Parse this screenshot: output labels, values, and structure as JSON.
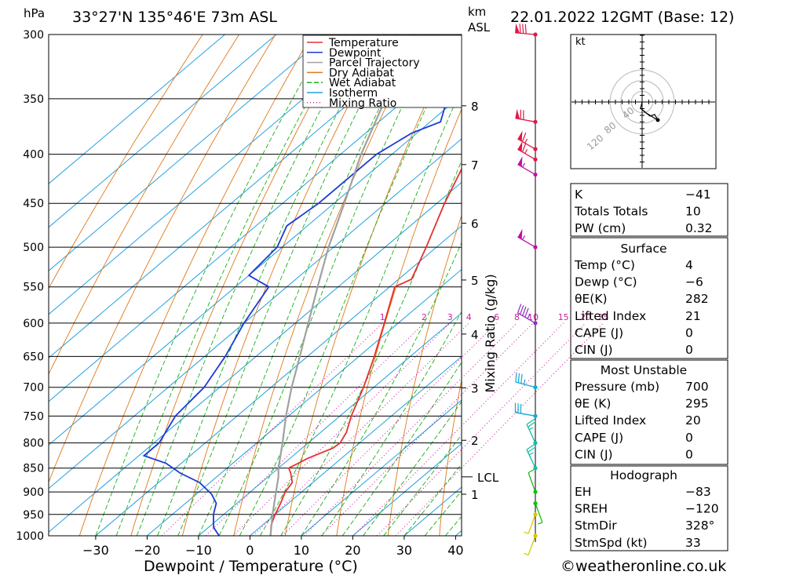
{
  "header": {
    "unit_left": "hPa",
    "location": "33°27'N  135°46'E  73m  ASL",
    "unit_km": "km",
    "unit_asl": "ASL",
    "datetime": "22.01.2022  12GMT  (Base: 12)"
  },
  "axes": {
    "xlabel": "Dewpoint / Temperature (°C)",
    "y2label": "Mixing Ratio (g/kg)",
    "lcl_label": "LCL"
  },
  "colors": {
    "temperature": "#e83030",
    "dewpoint": "#1a3ad6",
    "parcel": "#a0a0a0",
    "dry_adiabat": "#e07818",
    "wet_adiabat": "#18b018",
    "isotherm": "#20a0e0",
    "mixing_ratio": "#d020a0"
  },
  "legend": [
    {
      "label": "Temperature",
      "key": "temperature",
      "dash": ""
    },
    {
      "label": "Dewpoint",
      "key": "dewpoint",
      "dash": ""
    },
    {
      "label": "Parcel Trajectory",
      "key": "parcel",
      "dash": ""
    },
    {
      "label": "Dry Adiabat",
      "key": "dry_adiabat",
      "dash": ""
    },
    {
      "label": "Wet Adiabat",
      "key": "wet_adiabat",
      "dash": "6,3"
    },
    {
      "label": "Isotherm",
      "key": "isotherm",
      "dash": ""
    },
    {
      "label": "Mixing Ratio",
      "key": "mixing_ratio",
      "dash": "1,3"
    }
  ],
  "chart_data": {
    "type": "line",
    "title": "33°27'N 135°46'E 73m ASL — 22.01.2022 12GMT (Base: 12)",
    "xlabel": "Dewpoint / Temperature (°C)",
    "ylabel": "hPa",
    "y2label": "Mixing Ratio (g/kg)",
    "xlim": [
      -40,
      40
    ],
    "ylim": [
      1000,
      300
    ],
    "yscale": "log",
    "skew": true,
    "pressure_ticks": [
      300,
      350,
      400,
      450,
      500,
      550,
      600,
      650,
      700,
      750,
      800,
      850,
      900,
      950,
      1000
    ],
    "temperature_ticks": [
      -30,
      -20,
      -10,
      0,
      10,
      20,
      30,
      40
    ],
    "km_ticks": [
      {
        "label": "8",
        "p": 356
      },
      {
        "label": "7",
        "p": 410
      },
      {
        "label": "6",
        "p": 472
      },
      {
        "label": "5",
        "p": 541
      },
      {
        "label": "4",
        "p": 616
      },
      {
        "label": "3",
        "p": 701
      },
      {
        "label": "2",
        "p": 795
      },
      {
        "label": "1",
        "p": 905
      }
    ],
    "lcl_pressure": 868,
    "mixing_ratio_labels": [
      "1",
      "2",
      "3",
      "4",
      "6",
      "8",
      "10",
      "15",
      "20",
      "25"
    ],
    "series": [
      {
        "name": "Temperature",
        "key": "temperature",
        "points": [
          [
            1000,
            4
          ],
          [
            975,
            1.7
          ],
          [
            950,
            0
          ],
          [
            925,
            -1.5
          ],
          [
            900,
            -3.2
          ],
          [
            880,
            -4
          ],
          [
            860,
            -6.5
          ],
          [
            850,
            -8
          ],
          [
            830,
            -6.5
          ],
          [
            810,
            -4
          ],
          [
            800,
            -3.8
          ],
          [
            780,
            -5
          ],
          [
            750,
            -7.8
          ],
          [
            700,
            -12
          ],
          [
            650,
            -17
          ],
          [
            600,
            -22.7
          ],
          [
            550,
            -29
          ],
          [
            540,
            -27.5
          ],
          [
            500,
            -32
          ],
          [
            450,
            -38.5
          ],
          [
            400,
            -45
          ],
          [
            375,
            -48
          ],
          [
            350,
            -53
          ],
          [
            320,
            -57
          ],
          [
            300,
            -58
          ]
        ]
      },
      {
        "name": "Dewpoint",
        "key": "dewpoint",
        "points": [
          [
            1000,
            -6
          ],
          [
            980,
            -9
          ],
          [
            950,
            -12
          ],
          [
            925,
            -14
          ],
          [
            905,
            -17
          ],
          [
            880,
            -22
          ],
          [
            860,
            -28
          ],
          [
            840,
            -33
          ],
          [
            825,
            -39
          ],
          [
            800,
            -39
          ],
          [
            750,
            -42
          ],
          [
            700,
            -43
          ],
          [
            650,
            -46
          ],
          [
            600,
            -50
          ],
          [
            550,
            -53.5
          ],
          [
            535,
            -60
          ],
          [
            500,
            -61
          ],
          [
            475,
            -64
          ],
          [
            450,
            -63
          ],
          [
            400,
            -63
          ],
          [
            380,
            -61
          ],
          [
            370,
            -58
          ],
          [
            350,
            -62
          ]
        ]
      },
      {
        "name": "Parcel Trajectory",
        "key": "parcel",
        "points": [
          [
            1000,
            4
          ],
          [
            950,
            -0.5
          ],
          [
            900,
            -5
          ],
          [
            868,
            -8
          ],
          [
            850,
            -10
          ],
          [
            800,
            -15
          ],
          [
            750,
            -20.5
          ],
          [
            700,
            -26
          ],
          [
            650,
            -31.5
          ],
          [
            600,
            -37.5
          ],
          [
            550,
            -44
          ],
          [
            500,
            -51
          ],
          [
            450,
            -58
          ],
          [
            400,
            -66
          ],
          [
            350,
            -74
          ],
          [
            300,
            -83
          ]
        ]
      }
    ],
    "wind_barbs": [
      {
        "p": 1000,
        "dir": 200,
        "speed": 5,
        "color": "#d8c800"
      },
      {
        "p": 950,
        "dir": 200,
        "speed": 5,
        "color": "#d8c800"
      },
      {
        "p": 925,
        "dir": 160,
        "speed": 5,
        "color": "#10c010"
      },
      {
        "p": 900,
        "dir": 340,
        "speed": 10,
        "color": "#10c010"
      },
      {
        "p": 850,
        "dir": 335,
        "speed": 25,
        "color": "#10c0a0"
      },
      {
        "p": 800,
        "dir": 335,
        "speed": 25,
        "color": "#10c0a0"
      },
      {
        "p": 750,
        "dir": 280,
        "speed": 30,
        "color": "#10a8d8"
      },
      {
        "p": 700,
        "dir": 285,
        "speed": 35,
        "color": "#10a8d8"
      },
      {
        "p": 600,
        "dir": 300,
        "speed": 45,
        "color": "#9030c0"
      },
      {
        "p": 500,
        "dir": 300,
        "speed": 55,
        "color": "#c010a8"
      },
      {
        "p": 420,
        "dir": 300,
        "speed": 55,
        "color": "#c010a8"
      },
      {
        "p": 405,
        "dir": 300,
        "speed": 65,
        "color": "#e01848"
      },
      {
        "p": 395,
        "dir": 300,
        "speed": 65,
        "color": "#e01848"
      },
      {
        "p": 370,
        "dir": 280,
        "speed": 70,
        "color": "#e01848"
      },
      {
        "p": 300,
        "dir": 275,
        "speed": 80,
        "color": "#e01848"
      }
    ]
  },
  "hodograph": {
    "unit": "kt",
    "ring_labels": [
      "40",
      "80",
      "120"
    ]
  },
  "indices": {
    "top": [
      {
        "label": "K",
        "value": "-41"
      },
      {
        "label": "Totals Totals",
        "value": "10"
      },
      {
        "label": "PW (cm)",
        "value": "0.32"
      }
    ],
    "surface": {
      "title": "Surface",
      "rows": [
        {
          "label": "Temp (°C)",
          "value": "4"
        },
        {
          "label": "Dewp (°C)",
          "value": "-6"
        },
        {
          "label": "θE(K)",
          "value": "282"
        },
        {
          "label": "Lifted Index",
          "value": "21"
        },
        {
          "label": "CAPE (J)",
          "value": "0"
        },
        {
          "label": "CIN (J)",
          "value": "0"
        }
      ]
    },
    "most_unstable": {
      "title": "Most Unstable",
      "rows": [
        {
          "label": "Pressure (mb)",
          "value": "700"
        },
        {
          "label": "θE (K)",
          "value": "295"
        },
        {
          "label": "Lifted Index",
          "value": "20"
        },
        {
          "label": "CAPE (J)",
          "value": "0"
        },
        {
          "label": "CIN (J)",
          "value": "0"
        }
      ]
    },
    "hodograph": {
      "title": "Hodograph",
      "rows": [
        {
          "label": "EH",
          "value": "-83"
        },
        {
          "label": "SREH",
          "value": "-120"
        },
        {
          "label": "StmDir",
          "value": "328°"
        },
        {
          "label": "StmSpd (kt)",
          "value": "33"
        }
      ]
    }
  },
  "footer": {
    "copyright": "©weatheronline.co.uk"
  }
}
